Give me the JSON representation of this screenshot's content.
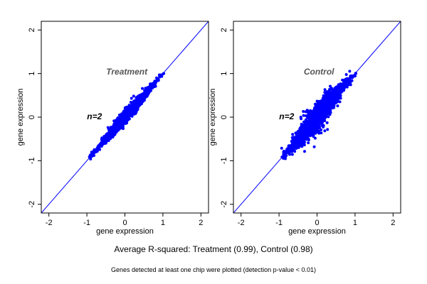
{
  "colors": {
    "points": "#0000ff",
    "diagonal": "#0000ff",
    "frame": "#000000",
    "panel_title": "#555555"
  },
  "chart_data": [
    {
      "type": "scatter",
      "title": "Treatment",
      "annotation": "n=2",
      "xlabel": "gene expression",
      "ylabel": "gene expression",
      "xlim": [
        -2.2,
        2.2
      ],
      "ylim": [
        -2.2,
        2.2
      ],
      "xticks": [
        "-2",
        "-1",
        "0",
        "1",
        "2"
      ],
      "yticks": [
        "-2",
        "-1",
        "0",
        "1",
        "2"
      ],
      "reference_line": "y = x",
      "point_cloud": {
        "x_range": [
          -1.15,
          1.2
        ],
        "spread": 0.08
      }
    },
    {
      "type": "scatter",
      "title": "Control",
      "annotation": "n=2",
      "xlabel": "gene expression",
      "ylabel": "gene expression",
      "xlim": [
        -2.2,
        2.2
      ],
      "ylim": [
        -2.2,
        2.2
      ],
      "xticks": [
        "-2",
        "-1",
        "0",
        "1",
        "2"
      ],
      "yticks": [
        "-2",
        "-1",
        "0",
        "1",
        "2"
      ],
      "reference_line": "y = x",
      "point_cloud": {
        "x_range": [
          -1.15,
          1.2
        ],
        "spread": 0.17
      }
    }
  ],
  "captions": {
    "main": "Average R-squared: Treatment (0.99), Control (0.98)",
    "sub": "Genes detected at least one chip were plotted (detection p-value < 0.01)"
  }
}
